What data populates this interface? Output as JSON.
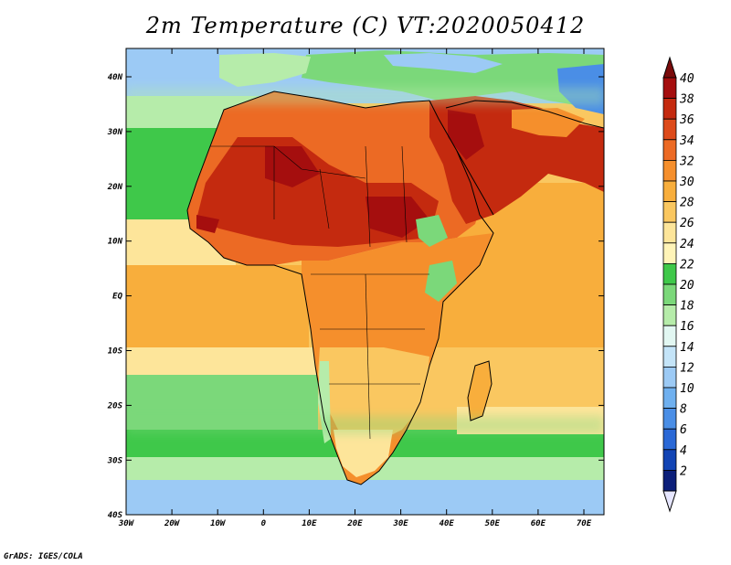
{
  "title": "2m Temperature (C) VT:2020050412",
  "credit": "GrADS: IGES/COLA",
  "map": {
    "lon_labels": [
      "30W",
      "20W",
      "10W",
      "0",
      "10E",
      "20E",
      "30E",
      "40E",
      "50E",
      "60E",
      "70E"
    ],
    "lat_labels": [
      "40N",
      "30N",
      "20N",
      "10N",
      "EQ",
      "10S",
      "20S",
      "30S",
      "40S"
    ]
  },
  "colorbar": {
    "labels": [
      "40",
      "38",
      "36",
      "34",
      "32",
      "30",
      "28",
      "26",
      "24",
      "22",
      "20",
      "18",
      "16",
      "14",
      "12",
      "10",
      "8",
      "6",
      "4",
      "2"
    ],
    "colors": [
      "#a50e0e",
      "#c42a0f",
      "#dd4a1a",
      "#ec6a24",
      "#f58f2c",
      "#f8ae3c",
      "#fac760",
      "#fde59a",
      "#fff4b8",
      "#3fc84a",
      "#7bd87a",
      "#b6ecaa",
      "#e2f7f2",
      "#c4e4f8",
      "#9ccaf5",
      "#6fb0ef",
      "#4a8ee6",
      "#2a68d6",
      "#1244b4",
      "#0c1f7a"
    ],
    "top_arrow_color": "#7a0b0b",
    "bottom_arrow_color": "#e6e6ff"
  },
  "palette": {
    "ocean_cold": "#7bb6ec",
    "ocean_cool": "#3fc84a",
    "ocean_mild": "#fde59a",
    "ocean_warm": "#f8ae3c",
    "land_hot": "#c42a0f",
    "land_warm": "#f58f2c",
    "land_south": "#fac760",
    "highland": "#7bd87a"
  }
}
